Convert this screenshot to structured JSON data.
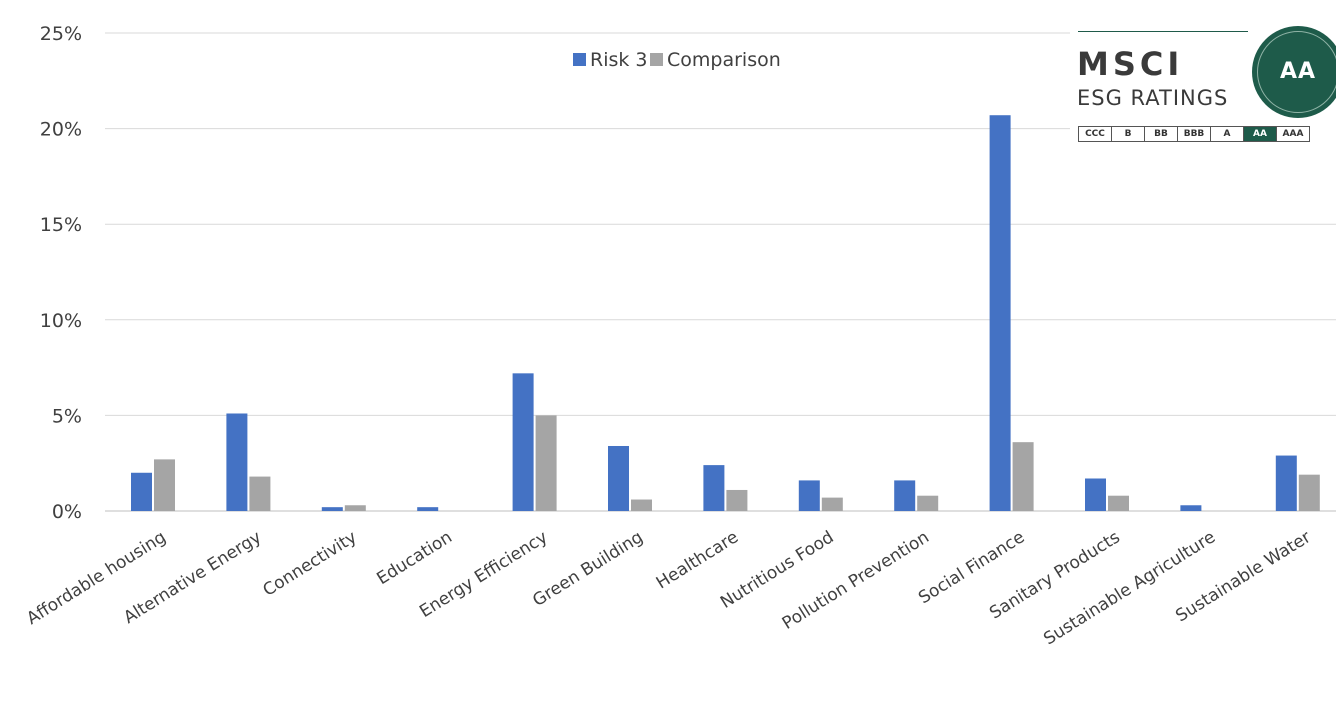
{
  "chart_data": {
    "type": "bar",
    "categories": [
      "Affordable housing",
      "Alternative Energy",
      "Connectivity",
      "Education",
      "Energy Efficiency",
      "Green Building",
      "Healthcare",
      "Nutritious Food",
      "Pollution Prevention",
      "Social Finance",
      "Sanitary Products",
      "Sustainable Agriculture",
      "Sustainable Water"
    ],
    "series": [
      {
        "name": "Risk 3",
        "color": "#4472c4",
        "values": [
          2.0,
          5.1,
          0.2,
          0.2,
          7.2,
          3.4,
          2.4,
          1.6,
          1.6,
          20.7,
          1.7,
          0.3,
          2.9
        ]
      },
      {
        "name": "Comparison",
        "color": "#a5a5a5",
        "values": [
          2.7,
          1.8,
          0.3,
          0.0,
          5.0,
          0.6,
          1.1,
          0.7,
          0.8,
          3.6,
          0.8,
          0.0,
          1.9
        ]
      }
    ],
    "ylim": [
      0,
      25
    ],
    "yticks": [
      "0%",
      "5%",
      "10%",
      "15%",
      "20%",
      "25%"
    ],
    "ytick_values": [
      0,
      5,
      10,
      15,
      20,
      25
    ],
    "grid": true,
    "legend": "top-center",
    "title": "",
    "xlabel": "",
    "ylabel": ""
  },
  "badge": {
    "brand": "MSCI",
    "subtitle": "ESG RATINGS",
    "rating": "AA",
    "scale": [
      "CCC",
      "B",
      "BB",
      "BBB",
      "A",
      "AA",
      "AAA"
    ],
    "active": "AA",
    "brand_color": "#1e5b4a"
  }
}
